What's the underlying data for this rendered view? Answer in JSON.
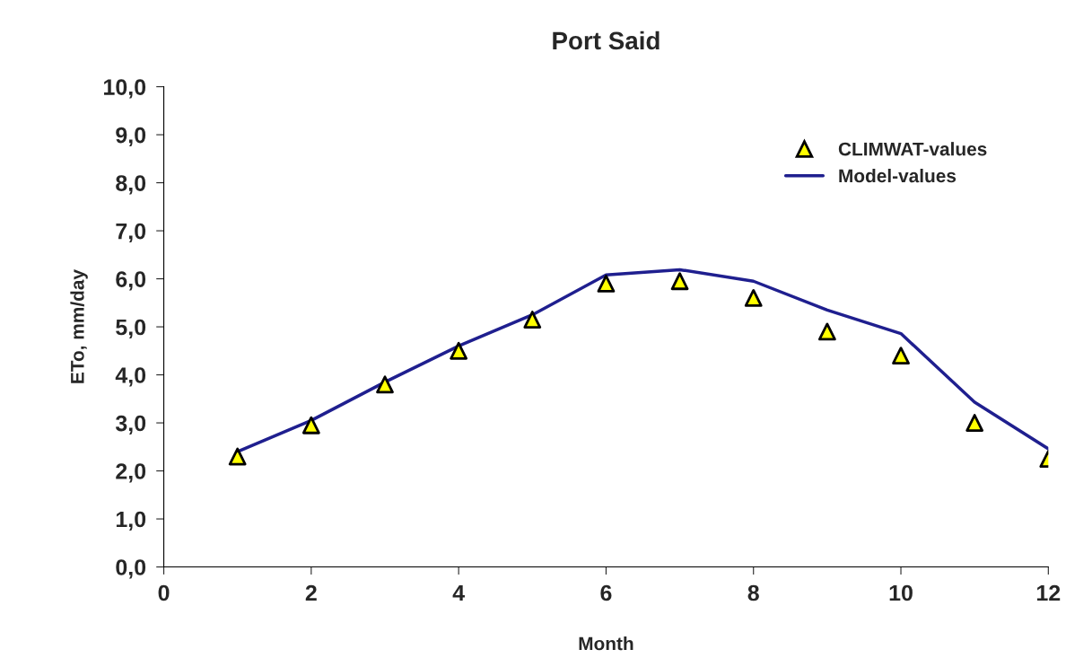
{
  "chart_data": {
    "type": "line",
    "title": "Port Said",
    "xlabel": "Month",
    "ylabel": "ETo, mm/day",
    "x": [
      1,
      2,
      3,
      4,
      5,
      6,
      7,
      8,
      9,
      10,
      11,
      12
    ],
    "series": [
      {
        "name": "CLIMWAT-values",
        "type": "scatter",
        "color": "#ffff00",
        "marker": "triangle",
        "values": [
          2.3,
          2.95,
          3.8,
          4.5,
          5.15,
          5.9,
          5.95,
          5.6,
          4.9,
          4.4,
          3.0,
          2.25
        ]
      },
      {
        "name": "Model-values",
        "color": "#1f1f8f",
        "values": [
          2.4,
          3.05,
          3.85,
          4.6,
          5.25,
          6.08,
          6.19,
          5.95,
          5.35,
          4.86,
          3.43,
          2.46
        ]
      }
    ],
    "xlim": [
      0,
      12
    ],
    "xticks": [
      0,
      2,
      4,
      6,
      8,
      10,
      12
    ],
    "ylim": [
      0,
      10
    ],
    "yticks": [
      {
        "value": 0,
        "label": "0,0"
      },
      {
        "value": 1,
        "label": "1,0"
      },
      {
        "value": 2,
        "label": "2,0"
      },
      {
        "value": 3,
        "label": "3,0"
      },
      {
        "value": 4,
        "label": "4,0"
      },
      {
        "value": 5,
        "label": "5,0"
      },
      {
        "value": 6,
        "label": "6,0"
      },
      {
        "value": 7,
        "label": "7,0"
      },
      {
        "value": 8,
        "label": "8,0"
      },
      {
        "value": 9,
        "label": "9,0"
      },
      {
        "value": 10,
        "label": "10,0"
      }
    ],
    "grid": false,
    "legend": "top right"
  }
}
